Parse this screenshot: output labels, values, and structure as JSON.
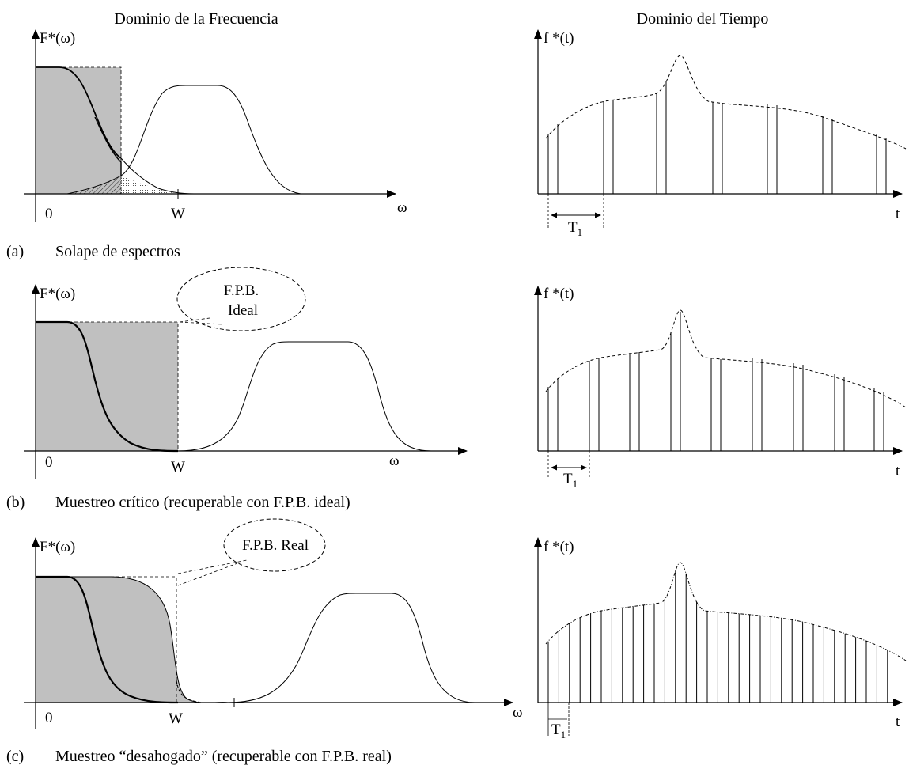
{
  "headers": {
    "freq": "Dominio de la Frecuencia",
    "time": "Dominio del Tiempo"
  },
  "axes": {
    "freq_y": "F*(ω)",
    "time_y": "f *(t)",
    "freq_x": "ω",
    "time_x": "t",
    "origin": "0",
    "w": "W",
    "period": "T",
    "period_sub": "1"
  },
  "callouts": {
    "b": [
      "F.P.B.",
      "Ideal"
    ],
    "c": "F.P.B. Real"
  },
  "captions": {
    "a": {
      "tag": "(a)",
      "text": "Solape de espectros"
    },
    "b": {
      "tag": "(b)",
      "text": "Muestreo crítico (recuperable con F.P.B. ideal)"
    },
    "c": {
      "tag": "(c)",
      "text": "Muestreo “desahogado” (recuperable con F.P.B. real)"
    }
  },
  "colors": {
    "shade": "#c0c0c0",
    "ink": "#000000"
  }
}
